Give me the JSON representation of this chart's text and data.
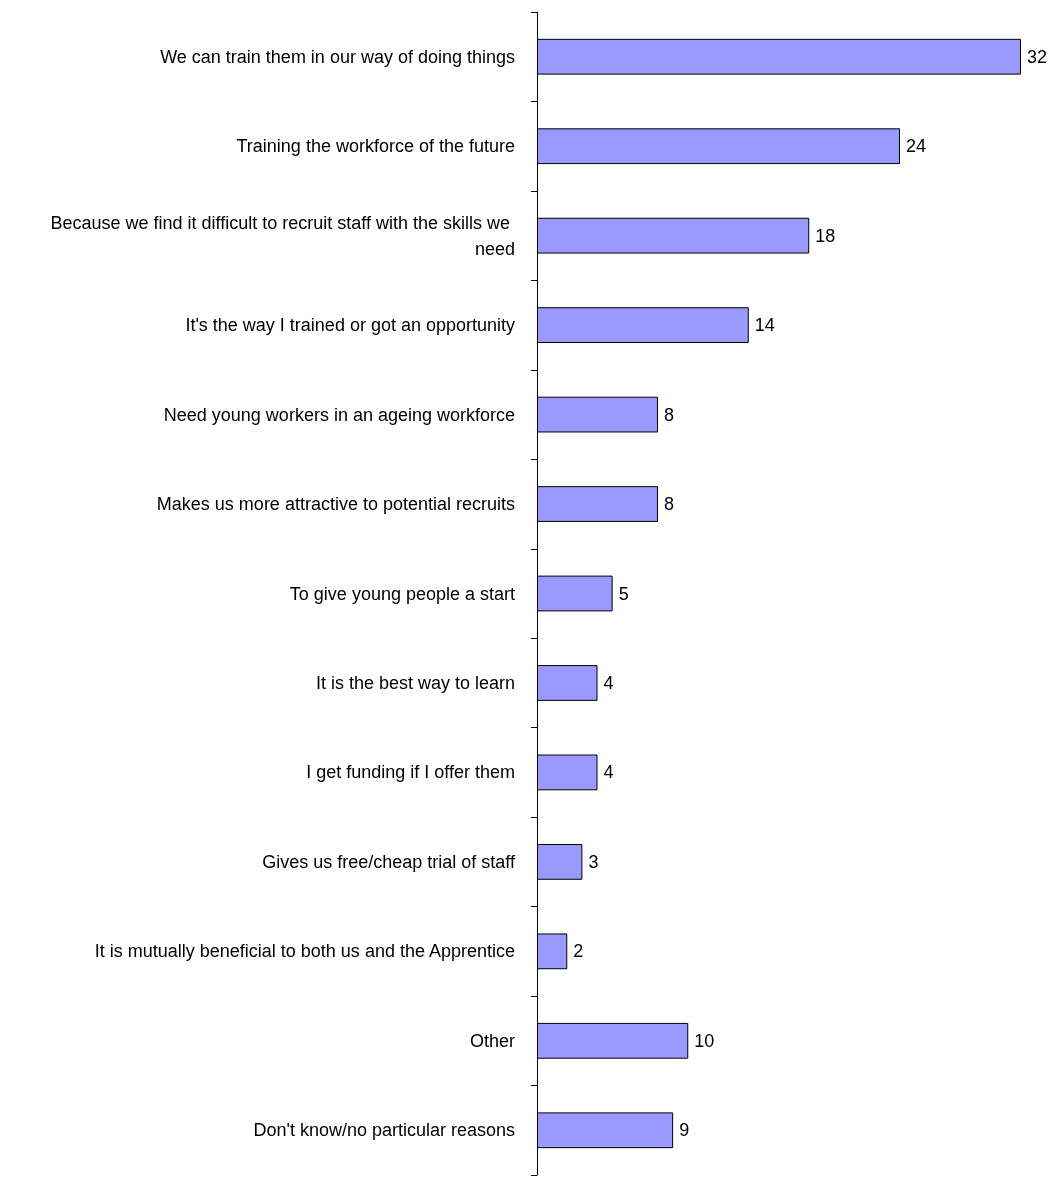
{
  "chart_data": {
    "type": "bar",
    "orientation": "horizontal",
    "categories": [
      "We can train them in our way of doing things",
      "Training the workforce of the future",
      "Because we find it difficult to recruit staff with the skills we need",
      "It's the way I trained or got an opportunity",
      "Need young workers in an ageing workforce",
      "Makes us more attractive to potential recruits",
      "To give young people a start",
      "It is the best way to learn",
      "I get funding if I offer them",
      "Gives us free/cheap trial of staff",
      "It is mutually beneficial to both us and the Apprentice",
      "Other",
      "Don't know/no particular reasons"
    ],
    "values": [
      32,
      24,
      18,
      14,
      8,
      8,
      5,
      4,
      4,
      3,
      2,
      10,
      9
    ],
    "color": "#9999ff",
    "data_labels": true
  }
}
